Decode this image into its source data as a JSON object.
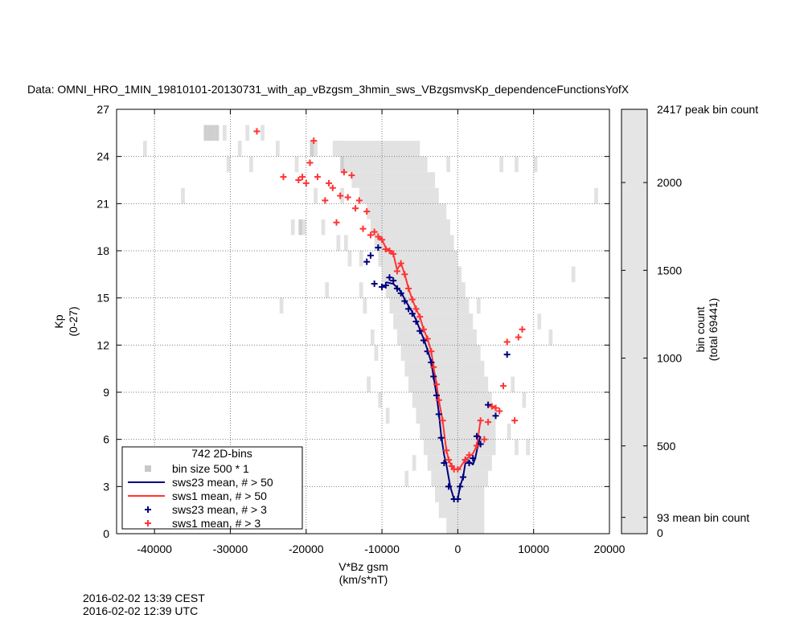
{
  "chart_data": {
    "type": "scatter",
    "title": "Data: OMNI_HRO_1MIN_19810101-20130731_with_ap_vBzgsm_3hmin_sws_VBzgsmvsKp_dependenceFunctionsYofX",
    "xlabel": "V*Bz gsm",
    "xunit": "(km/s*nT)",
    "ylabel": "Kp",
    "yunit": "(0-27)",
    "xlim": [
      -45000,
      20000
    ],
    "ylim": [
      0,
      27
    ],
    "xticks": [
      -40000,
      -30000,
      -20000,
      -10000,
      0,
      10000,
      20000
    ],
    "yticks": [
      0,
      3,
      6,
      9,
      12,
      15,
      18,
      21,
      24,
      27
    ],
    "grid": true,
    "colors": {
      "sws23": "#00007f",
      "sws1": "#ff3333",
      "bins": "#e2e2e2",
      "bins_dark": "#cfcfcf"
    },
    "colorbar": {
      "label": "bin count",
      "sublabel": "(total 69441)",
      "range": [
        0,
        2417
      ],
      "ticks": [
        0,
        500,
        1000,
        1500,
        2000
      ],
      "peak_label": "2417 peak bin count",
      "mean_label": "93 mean bin count",
      "mean_value": 93
    },
    "legend": {
      "position": "bottom-left",
      "header": "742 2D-bins",
      "entries": [
        {
          "label": "bin size 500 * 1",
          "style": "square",
          "color": "#c8c8c8"
        },
        {
          "label": "sws23 mean, # > 50",
          "style": "line",
          "color": "#00007f"
        },
        {
          "label": "sws1 mean, # > 50",
          "style": "line",
          "color": "#ff3333"
        },
        {
          "label": "sws23 mean, # > 3",
          "style": "plus",
          "color": "#00007f"
        },
        {
          "label": "sws1 mean, # > 3",
          "style": "plus",
          "color": "#ff3333"
        }
      ]
    },
    "series": [
      {
        "name": "sws23 mean, # > 50",
        "kind": "line",
        "color": "#00007f",
        "points": [
          [
            -9500,
            16.0
          ],
          [
            -8500,
            15.9
          ],
          [
            -7500,
            15.4
          ],
          [
            -7000,
            14.9
          ],
          [
            -6500,
            14.5
          ],
          [
            -6000,
            14.1
          ],
          [
            -5500,
            13.6
          ],
          [
            -5000,
            13.0
          ],
          [
            -4500,
            12.4
          ],
          [
            -4000,
            11.7
          ],
          [
            -3500,
            10.9
          ],
          [
            -3200,
            10.0
          ],
          [
            -2800,
            8.8
          ],
          [
            -2500,
            7.7
          ],
          [
            -2200,
            6.3
          ],
          [
            -1800,
            5.0
          ],
          [
            -1500,
            4.4
          ],
          [
            -1000,
            3.0
          ],
          [
            -500,
            2.2
          ],
          [
            0,
            2.2
          ],
          [
            300,
            3.0
          ],
          [
            700,
            3.6
          ],
          [
            1000,
            4.5
          ],
          [
            1500,
            4.6
          ],
          [
            2000,
            4.4
          ],
          [
            2300,
            4.8
          ],
          [
            2700,
            5.7
          ],
          [
            3000,
            6.2
          ]
        ]
      },
      {
        "name": "sws1 mean, # > 50",
        "kind": "line",
        "color": "#ff3333",
        "points": [
          [
            -10500,
            18.9
          ],
          [
            -10000,
            18.7
          ],
          [
            -9500,
            18.2
          ],
          [
            -9000,
            18.0
          ],
          [
            -8500,
            17.8
          ],
          [
            -8000,
            16.8
          ],
          [
            -7500,
            17.2
          ],
          [
            -7000,
            16.5
          ],
          [
            -6500,
            15.6
          ],
          [
            -6000,
            14.9
          ],
          [
            -5500,
            14.3
          ],
          [
            -5000,
            13.8
          ],
          [
            -4500,
            13.0
          ],
          [
            -4000,
            12.4
          ],
          [
            -3500,
            11.6
          ],
          [
            -3200,
            10.6
          ],
          [
            -2800,
            9.5
          ],
          [
            -2500,
            8.5
          ],
          [
            -2000,
            7.2
          ],
          [
            -1500,
            5.3
          ],
          [
            -1200,
            4.7
          ],
          [
            -800,
            4.3
          ],
          [
            -500,
            4.1
          ],
          [
            0,
            4.1
          ],
          [
            300,
            4.2
          ],
          [
            700,
            4.5
          ],
          [
            1000,
            4.7
          ],
          [
            1500,
            4.9
          ],
          [
            2000,
            5.1
          ],
          [
            2500,
            5.6
          ],
          [
            3000,
            7.2
          ]
        ]
      },
      {
        "name": "sws23 mean, # > 3",
        "kind": "plus",
        "color": "#00007f",
        "points": [
          [
            -12000,
            17.3
          ],
          [
            -11500,
            17.7
          ],
          [
            -10500,
            18.2
          ],
          [
            -11000,
            15.9
          ],
          [
            -10000,
            15.7
          ],
          [
            -9500,
            15.8
          ],
          [
            -9000,
            16.3
          ],
          [
            -8500,
            16.1
          ],
          [
            -8000,
            15.6
          ],
          [
            -7500,
            15.3
          ],
          [
            -7000,
            14.8
          ],
          [
            -6500,
            14.3
          ],
          [
            -6000,
            14.0
          ],
          [
            -5500,
            13.5
          ],
          [
            -5000,
            12.9
          ],
          [
            -4500,
            12.3
          ],
          [
            -4000,
            11.6
          ],
          [
            -3500,
            10.9
          ],
          [
            -3200,
            10.0
          ],
          [
            -2800,
            8.8
          ],
          [
            -2500,
            7.6
          ],
          [
            -2200,
            6.1
          ],
          [
            -1800,
            4.5
          ],
          [
            -1200,
            3.0
          ],
          [
            -500,
            2.2
          ],
          [
            0,
            2.2
          ],
          [
            300,
            3.0
          ],
          [
            700,
            3.6
          ],
          [
            1000,
            4.7
          ],
          [
            1500,
            4.5
          ],
          [
            2000,
            4.8
          ],
          [
            2500,
            6.2
          ],
          [
            3000,
            5.7
          ],
          [
            4000,
            8.2
          ],
          [
            5000,
            7.5
          ],
          [
            6500,
            11.4
          ]
        ]
      },
      {
        "name": "sws1 mean, # > 3",
        "kind": "plus",
        "color": "#ff3333",
        "points": [
          [
            -26500,
            25.6
          ],
          [
            -23000,
            22.7
          ],
          [
            -21000,
            22.5
          ],
          [
            -20500,
            22.7
          ],
          [
            -20000,
            22.3
          ],
          [
            -19500,
            23.6
          ],
          [
            -19000,
            25.0
          ],
          [
            -18500,
            22.7
          ],
          [
            -17500,
            21.2
          ],
          [
            -17000,
            22.3
          ],
          [
            -16500,
            22.0
          ],
          [
            -16000,
            19.8
          ],
          [
            -15500,
            21.5
          ],
          [
            -15000,
            23.0
          ],
          [
            -14500,
            21.4
          ],
          [
            -14000,
            22.8
          ],
          [
            -13500,
            20.7
          ],
          [
            -13000,
            21.2
          ],
          [
            -12500,
            19.4
          ],
          [
            -12000,
            20.5
          ],
          [
            -11500,
            19.0
          ],
          [
            -11000,
            19.2
          ],
          [
            -10500,
            18.9
          ],
          [
            -10000,
            18.7
          ],
          [
            -9500,
            18.1
          ],
          [
            -9000,
            18.0
          ],
          [
            -8500,
            17.8
          ],
          [
            -8000,
            16.7
          ],
          [
            -7500,
            17.2
          ],
          [
            -7000,
            16.5
          ],
          [
            -6500,
            15.6
          ],
          [
            -6000,
            14.9
          ],
          [
            -5500,
            14.3
          ],
          [
            -5000,
            13.8
          ],
          [
            -4500,
            13.0
          ],
          [
            -4000,
            12.4
          ],
          [
            -3500,
            11.6
          ],
          [
            -3200,
            10.6
          ],
          [
            -2800,
            9.5
          ],
          [
            -2500,
            8.5
          ],
          [
            -2000,
            7.2
          ],
          [
            -1500,
            5.3
          ],
          [
            -1200,
            4.7
          ],
          [
            -800,
            4.3
          ],
          [
            -500,
            4.1
          ],
          [
            0,
            4.1
          ],
          [
            1000,
            4.7
          ],
          [
            1500,
            5.0
          ],
          [
            2500,
            5.6
          ],
          [
            3000,
            7.2
          ],
          [
            3500,
            6.0
          ],
          [
            4000,
            7.1
          ],
          [
            4500,
            8.1
          ],
          [
            5000,
            8.0
          ],
          [
            5500,
            7.8
          ],
          [
            6000,
            9.4
          ],
          [
            6500,
            12.2
          ],
          [
            7500,
            7.2
          ],
          [
            8000,
            12.5
          ],
          [
            8500,
            13.0
          ]
        ]
      }
    ],
    "bins": {
      "bin_size": [
        500,
        1
      ],
      "band": [
        [
          0,
          -1500,
          3500
        ],
        [
          1,
          -2500,
          3500
        ],
        [
          2,
          -3000,
          3500
        ],
        [
          3,
          -3500,
          4000
        ],
        [
          4,
          -4000,
          4500
        ],
        [
          5,
          -4500,
          5000
        ],
        [
          6,
          -5000,
          5000
        ],
        [
          7,
          -5500,
          5000
        ],
        [
          8,
          -6000,
          4500
        ],
        [
          9,
          -6500,
          4000
        ],
        [
          10,
          -7000,
          3500
        ],
        [
          11,
          -7500,
          3000
        ],
        [
          12,
          -8000,
          2500
        ],
        [
          13,
          -8500,
          2000
        ],
        [
          14,
          -9000,
          1500
        ],
        [
          15,
          -9500,
          1000
        ],
        [
          16,
          -10000,
          500
        ],
        [
          17,
          -10500,
          0
        ],
        [
          18,
          -11000,
          -500
        ],
        [
          19,
          -11500,
          -1000
        ],
        [
          20,
          -12000,
          -1500
        ],
        [
          21,
          -13000,
          -2500
        ],
        [
          22,
          -14000,
          -3000
        ],
        [
          23,
          -15000,
          -4000
        ],
        [
          24,
          -16500,
          -5000
        ]
      ],
      "scatter": [
        [
          -26000,
          25
        ],
        [
          -28000,
          25
        ],
        [
          -31000,
          25
        ],
        [
          -33000,
          25
        ],
        [
          -41500,
          24
        ],
        [
          -29000,
          24
        ],
        [
          -24000,
          24
        ],
        [
          -19000,
          24
        ],
        [
          -16000,
          24
        ],
        [
          -30500,
          23
        ],
        [
          -27500,
          23
        ],
        [
          -21500,
          23
        ],
        [
          -12500,
          23
        ],
        [
          -1500,
          23
        ],
        [
          5500,
          23
        ],
        [
          7500,
          23
        ],
        [
          10000,
          23
        ],
        [
          -36500,
          21
        ],
        [
          -15500,
          21
        ],
        [
          -19000,
          21
        ],
        [
          18000,
          21
        ],
        [
          -20500,
          19
        ],
        [
          -22000,
          19
        ],
        [
          -18000,
          19
        ],
        [
          -16000,
          18
        ],
        [
          -15000,
          18
        ],
        [
          -13000,
          17
        ],
        [
          -14500,
          17
        ],
        [
          -17500,
          15
        ],
        [
          -13000,
          15
        ],
        [
          -23500,
          14
        ],
        [
          -12500,
          14
        ],
        [
          2500,
          14
        ],
        [
          15000,
          16
        ],
        [
          10500,
          13
        ],
        [
          12000,
          12
        ],
        [
          -11000,
          11
        ],
        [
          -11500,
          12
        ],
        [
          -12000,
          9
        ],
        [
          -10500,
          8
        ],
        [
          -9500,
          7
        ],
        [
          7000,
          9
        ],
        [
          8500,
          8
        ],
        [
          6500,
          6
        ],
        [
          7500,
          5
        ],
        [
          9000,
          5
        ],
        [
          -6000,
          4
        ],
        [
          -7000,
          3
        ]
      ],
      "dark": [
        [
          -33500,
          25
        ],
        [
          -33000,
          25
        ],
        [
          -32500,
          25
        ],
        [
          -32000,
          25
        ],
        [
          -19500,
          24
        ],
        [
          -15500,
          23
        ],
        [
          -21000,
          19
        ]
      ]
    }
  },
  "footer": {
    "local_time": "2016-02-02 13:39 CEST",
    "utc_time": "2016-02-02 12:39 UTC"
  }
}
